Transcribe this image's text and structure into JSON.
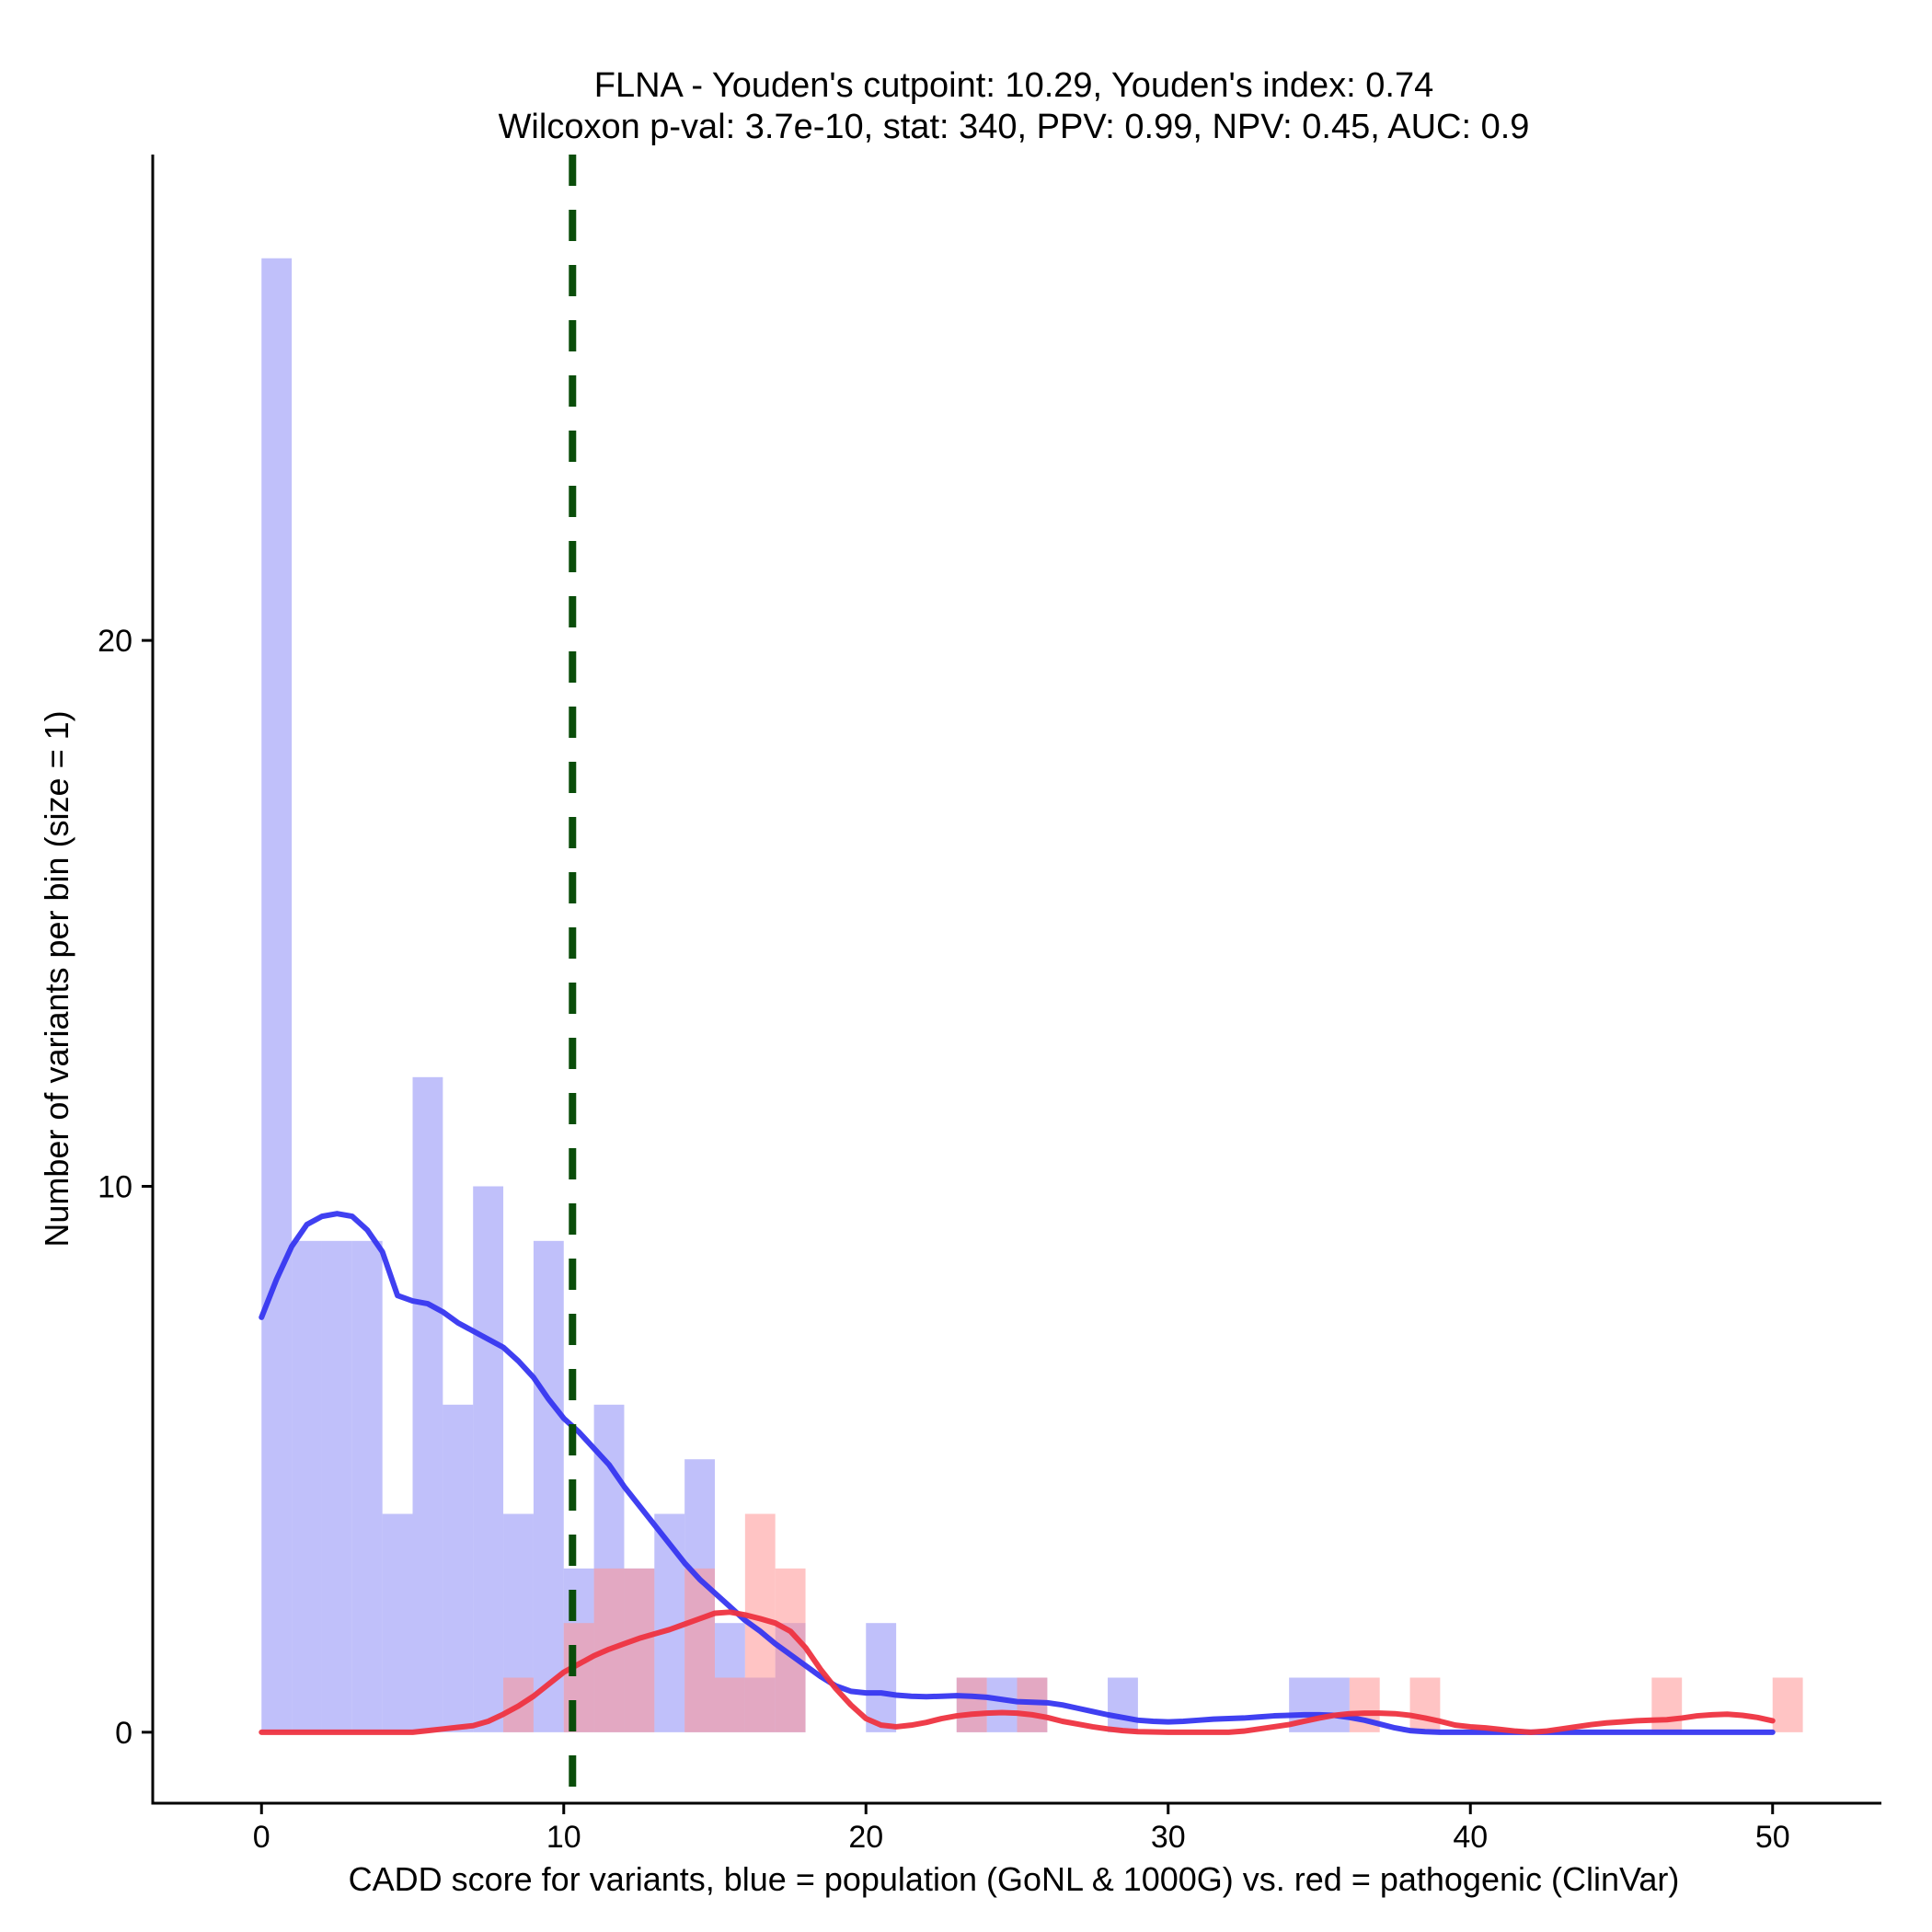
{
  "chart_data": {
    "type": "bar",
    "title": "FLNA - Youden's cutpoint: 10.29, Youden's index: 0.74",
    "subtitle": "Wilcoxon p-val: 3.7e-10, stat: 340, PPV: 0.99, NPV: 0.45, AUC: 0.9",
    "xlabel": "CADD score for variants, blue = population (GoNL & 1000G) vs. red = pathogenic (ClinVar)",
    "ylabel": "Number of variants per bin (size = 1)",
    "xlim": [
      -3.6,
      53.6
    ],
    "ylim": [
      -1.3,
      28.9
    ],
    "x_ticks": [
      0,
      10,
      20,
      30,
      40,
      50
    ],
    "x_tick_labels": [
      "0",
      "10",
      "20",
      "30",
      "40",
      "50"
    ],
    "y_ticks": [
      0,
      10,
      20
    ],
    "y_tick_labels": [
      "0",
      "10",
      "20"
    ],
    "bin_width": 1,
    "cutpoint": 10.29,
    "series": [
      {
        "name": "population (GoNL & 1000G)",
        "color": "#8c8cf5",
        "bins": [
          [
            0,
            27
          ],
          [
            1,
            9
          ],
          [
            2,
            9
          ],
          [
            3,
            9
          ],
          [
            4,
            4
          ],
          [
            5,
            12
          ],
          [
            6,
            6
          ],
          [
            7,
            10
          ],
          [
            8,
            4
          ],
          [
            9,
            9
          ],
          [
            10,
            3
          ],
          [
            11,
            6
          ],
          [
            12,
            3
          ],
          [
            13,
            4
          ],
          [
            14,
            5
          ],
          [
            15,
            2
          ],
          [
            16,
            1
          ],
          [
            17,
            2
          ],
          [
            20,
            2
          ],
          [
            23,
            1
          ],
          [
            24,
            1
          ],
          [
            25,
            1
          ],
          [
            28,
            1
          ],
          [
            34,
            1
          ],
          [
            35,
            1
          ]
        ],
        "density": [
          [
            0,
            7.6
          ],
          [
            0.5,
            8.3
          ],
          [
            1,
            8.9
          ],
          [
            1.5,
            9.3
          ],
          [
            2,
            9.45
          ],
          [
            2.5,
            9.5
          ],
          [
            3,
            9.45
          ],
          [
            3.5,
            9.2
          ],
          [
            4,
            8.8
          ],
          [
            4.5,
            8.0
          ],
          [
            5,
            7.9
          ],
          [
            5.5,
            7.85
          ],
          [
            6,
            7.7
          ],
          [
            6.5,
            7.5
          ],
          [
            7,
            7.35
          ],
          [
            7.5,
            7.2
          ],
          [
            8,
            7.05
          ],
          [
            8.5,
            6.8
          ],
          [
            9,
            6.5
          ],
          [
            9.5,
            6.1
          ],
          [
            10,
            5.75
          ],
          [
            10.5,
            5.5
          ],
          [
            11,
            5.2
          ],
          [
            11.5,
            4.9
          ],
          [
            12,
            4.5
          ],
          [
            12.5,
            4.15
          ],
          [
            13,
            3.8
          ],
          [
            13.5,
            3.45
          ],
          [
            14,
            3.1
          ],
          [
            14.5,
            2.8
          ],
          [
            15,
            2.55
          ],
          [
            15.5,
            2.3
          ],
          [
            16,
            2.05
          ],
          [
            16.5,
            1.85
          ],
          [
            17,
            1.62
          ],
          [
            17.5,
            1.42
          ],
          [
            18,
            1.22
          ],
          [
            18.5,
            1.02
          ],
          [
            19,
            0.85
          ],
          [
            19.5,
            0.75
          ],
          [
            20,
            0.72
          ],
          [
            20.5,
            0.72
          ],
          [
            21,
            0.68
          ],
          [
            21.5,
            0.66
          ],
          [
            22,
            0.65
          ],
          [
            22.5,
            0.66
          ],
          [
            23,
            0.67
          ],
          [
            23.5,
            0.66
          ],
          [
            24,
            0.64
          ],
          [
            24.5,
            0.6
          ],
          [
            25,
            0.56
          ],
          [
            25.5,
            0.55
          ],
          [
            26,
            0.54
          ],
          [
            26.5,
            0.5
          ],
          [
            27,
            0.44
          ],
          [
            27.5,
            0.38
          ],
          [
            28,
            0.32
          ],
          [
            28.5,
            0.27
          ],
          [
            29,
            0.22
          ],
          [
            29.5,
            0.2
          ],
          [
            30,
            0.19
          ],
          [
            30.5,
            0.2
          ],
          [
            31,
            0.22
          ],
          [
            31.5,
            0.24
          ],
          [
            32,
            0.25
          ],
          [
            32.5,
            0.26
          ],
          [
            33,
            0.28
          ],
          [
            33.5,
            0.3
          ],
          [
            34,
            0.31
          ],
          [
            34.5,
            0.32
          ],
          [
            35,
            0.32
          ],
          [
            35.5,
            0.31
          ],
          [
            36,
            0.27
          ],
          [
            36.5,
            0.22
          ],
          [
            37,
            0.15
          ],
          [
            37.5,
            0.08
          ],
          [
            38,
            0.03
          ],
          [
            38.5,
            0.01
          ],
          [
            39,
            0
          ],
          [
            40,
            0
          ],
          [
            45,
            0
          ],
          [
            50,
            0
          ]
        ]
      },
      {
        "name": "pathogenic (ClinVar)",
        "color": "#ff9494",
        "bins": [
          [
            8,
            1
          ],
          [
            10,
            2
          ],
          [
            11,
            3
          ],
          [
            12,
            3
          ],
          [
            14,
            3
          ],
          [
            15,
            1
          ],
          [
            16,
            4
          ],
          [
            17,
            3
          ],
          [
            23,
            1
          ],
          [
            25,
            1
          ],
          [
            36,
            1
          ],
          [
            38,
            1
          ],
          [
            46,
            1
          ],
          [
            50,
            1
          ]
        ],
        "density": [
          [
            0,
            0
          ],
          [
            1,
            0
          ],
          [
            2,
            0
          ],
          [
            3,
            0
          ],
          [
            4,
            0
          ],
          [
            5,
            0
          ],
          [
            5.5,
            0.03
          ],
          [
            6,
            0.06
          ],
          [
            6.5,
            0.09
          ],
          [
            7,
            0.12
          ],
          [
            7.5,
            0.2
          ],
          [
            8,
            0.33
          ],
          [
            8.5,
            0.48
          ],
          [
            9,
            0.66
          ],
          [
            9.5,
            0.88
          ],
          [
            10,
            1.1
          ],
          [
            10.5,
            1.25
          ],
          [
            11,
            1.4
          ],
          [
            11.5,
            1.52
          ],
          [
            12,
            1.62
          ],
          [
            12.5,
            1.72
          ],
          [
            13,
            1.8
          ],
          [
            13.5,
            1.88
          ],
          [
            14,
            1.98
          ],
          [
            14.5,
            2.08
          ],
          [
            15,
            2.18
          ],
          [
            15.5,
            2.2
          ],
          [
            16,
            2.15
          ],
          [
            16.5,
            2.08
          ],
          [
            17,
            2.0
          ],
          [
            17.5,
            1.85
          ],
          [
            18,
            1.55
          ],
          [
            18.5,
            1.15
          ],
          [
            19,
            0.8
          ],
          [
            19.5,
            0.5
          ],
          [
            20,
            0.25
          ],
          [
            20.5,
            0.13
          ],
          [
            21,
            0.1
          ],
          [
            21.5,
            0.13
          ],
          [
            22,
            0.18
          ],
          [
            22.5,
            0.25
          ],
          [
            23,
            0.3
          ],
          [
            23.5,
            0.33
          ],
          [
            24,
            0.35
          ],
          [
            24.5,
            0.36
          ],
          [
            25,
            0.35
          ],
          [
            25.5,
            0.32
          ],
          [
            26,
            0.27
          ],
          [
            26.5,
            0.2
          ],
          [
            27,
            0.15
          ],
          [
            27.5,
            0.1
          ],
          [
            28,
            0.06
          ],
          [
            28.5,
            0.03
          ],
          [
            29,
            0.01
          ],
          [
            30,
            0
          ],
          [
            31,
            0
          ],
          [
            32,
            0
          ],
          [
            32.5,
            0.02
          ],
          [
            33,
            0.06
          ],
          [
            33.5,
            0.1
          ],
          [
            34,
            0.14
          ],
          [
            34.5,
            0.2
          ],
          [
            35,
            0.26
          ],
          [
            35.5,
            0.31
          ],
          [
            36,
            0.34
          ],
          [
            36.5,
            0.35
          ],
          [
            37,
            0.35
          ],
          [
            37.5,
            0.34
          ],
          [
            38,
            0.31
          ],
          [
            38.5,
            0.26
          ],
          [
            39,
            0.2
          ],
          [
            39.5,
            0.13
          ],
          [
            40,
            0.1
          ],
          [
            40.5,
            0.08
          ],
          [
            41,
            0.05
          ],
          [
            41.5,
            0.02
          ],
          [
            42,
            0
          ],
          [
            42.5,
            0.02
          ],
          [
            43,
            0.06
          ],
          [
            43.5,
            0.1
          ],
          [
            44,
            0.14
          ],
          [
            44.5,
            0.17
          ],
          [
            45,
            0.19
          ],
          [
            45.5,
            0.21
          ],
          [
            46,
            0.22
          ],
          [
            46.5,
            0.23
          ],
          [
            47,
            0.26
          ],
          [
            47.5,
            0.3
          ],
          [
            48,
            0.32
          ],
          [
            48.5,
            0.33
          ],
          [
            49,
            0.31
          ],
          [
            49.5,
            0.27
          ],
          [
            50,
            0.21
          ]
        ]
      }
    ],
    "colors": {
      "population_bar": "#8c8cf5",
      "pathogenic_bar": "#ff9494",
      "population_line": "#3636f0",
      "pathogenic_line": "#ee3340",
      "cutpoint_line": "#0a4d0a"
    }
  }
}
